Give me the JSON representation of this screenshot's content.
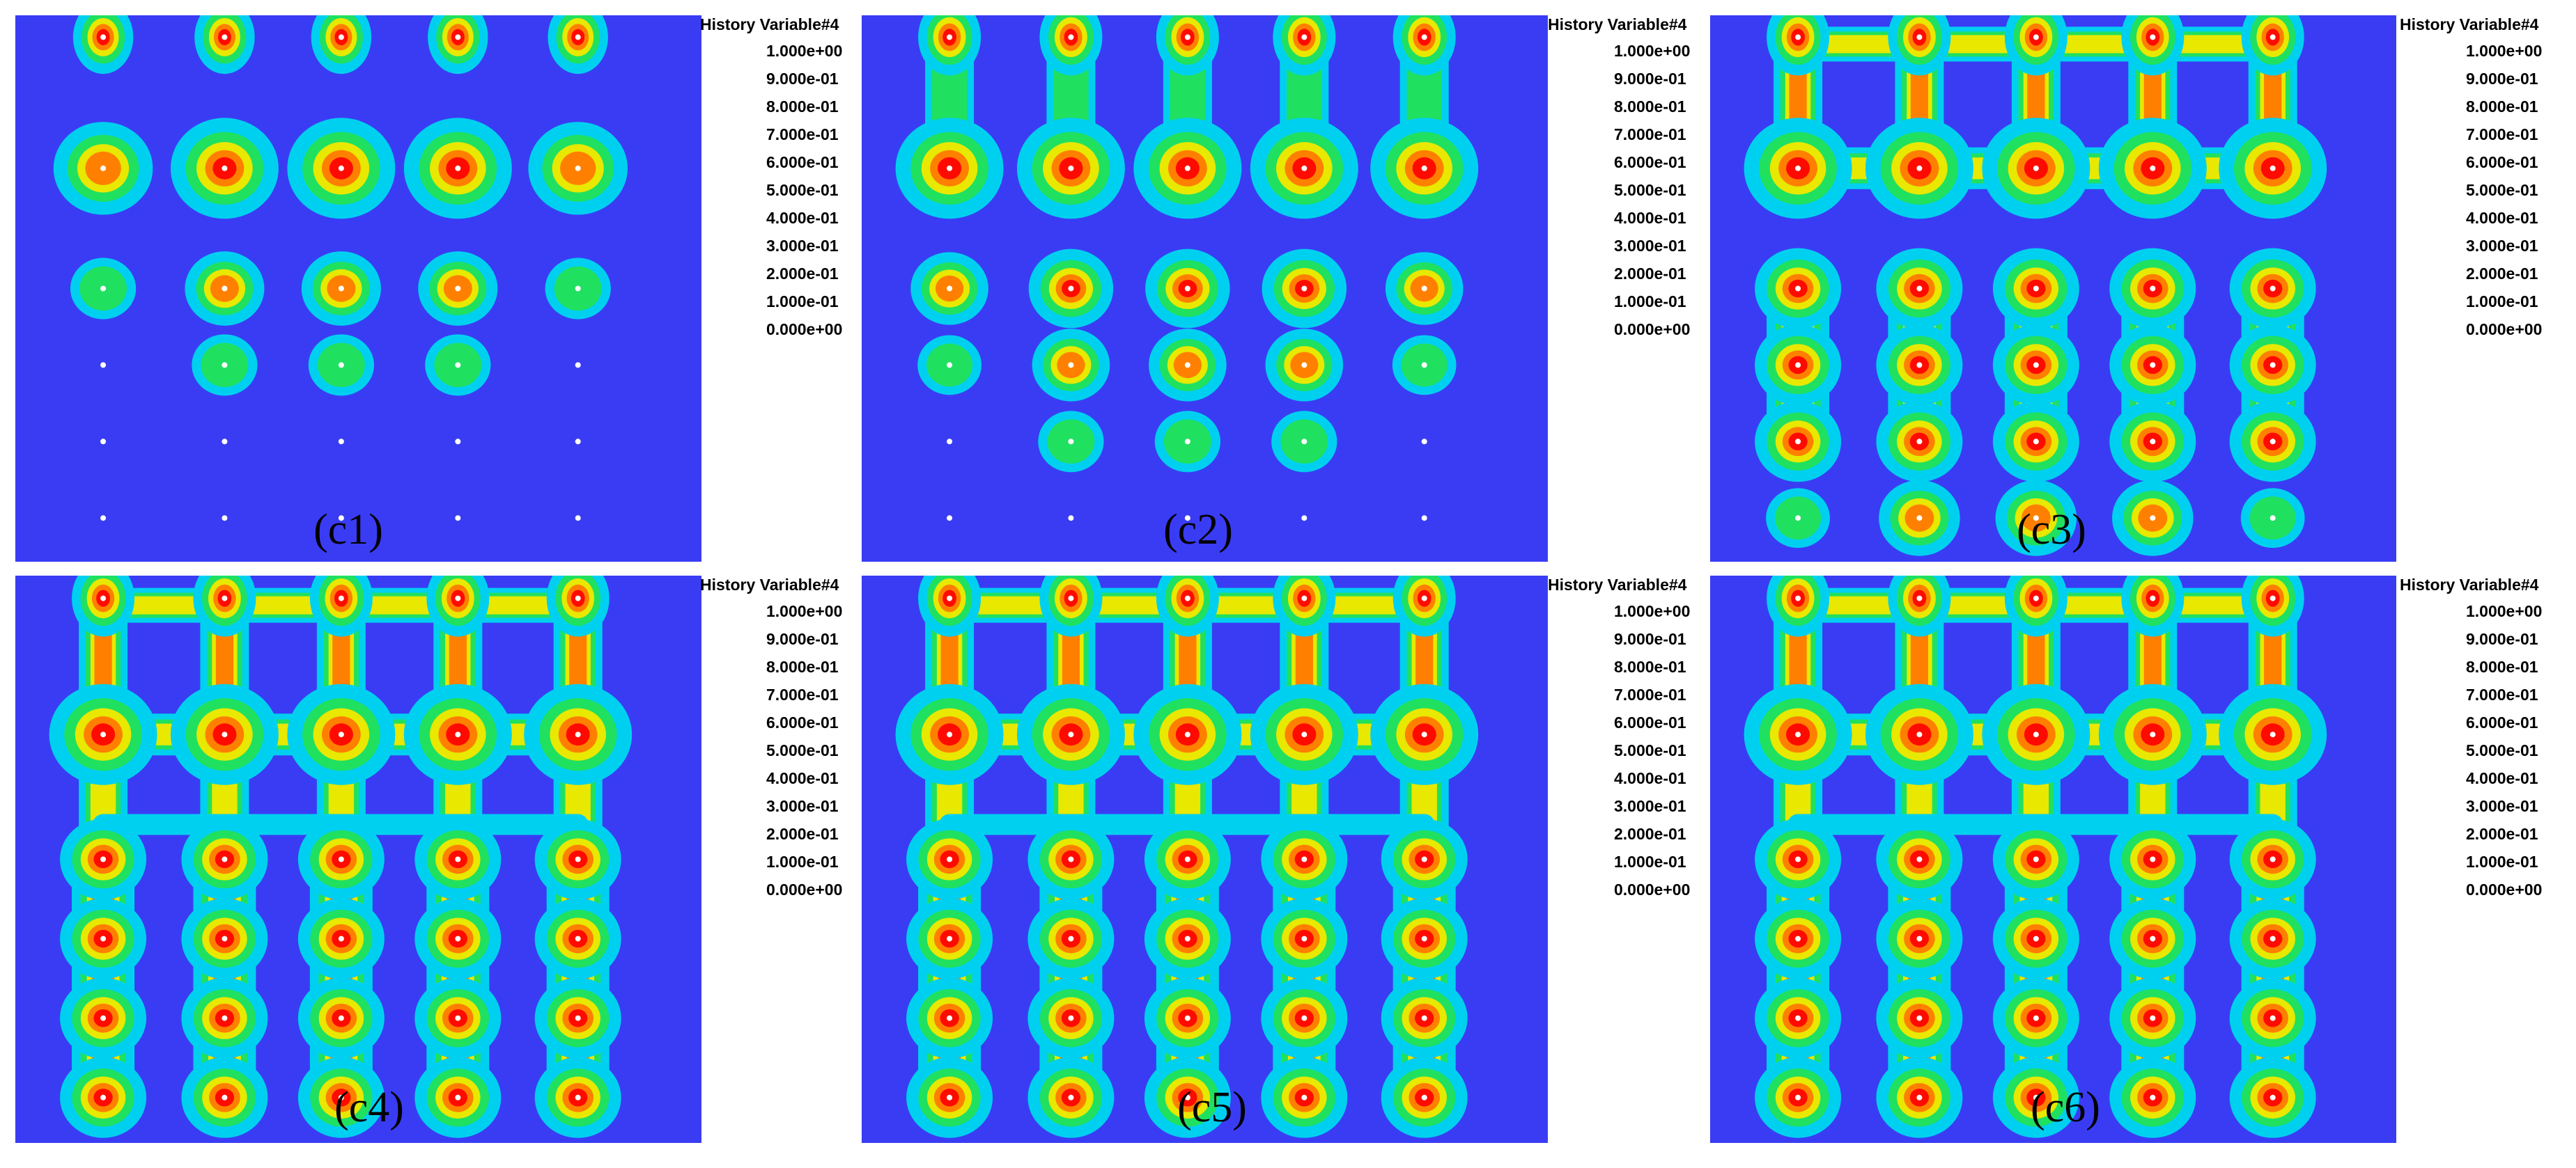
{
  "panels": [
    {
      "label": "(c1)",
      "stage": 1
    },
    {
      "label": "(c2)",
      "stage": 2
    },
    {
      "label": "(c3)",
      "stage": 3
    },
    {
      "label": "(c4)",
      "stage": 4
    },
    {
      "label": "(c5)",
      "stage": 5
    },
    {
      "label": "(c6)",
      "stage": 6
    }
  ],
  "legend": {
    "title": "History Variable#4",
    "labels": [
      "1.000e+00",
      "9.000e-01",
      "8.000e-01",
      "7.000e-01",
      "6.000e-01",
      "5.000e-01",
      "4.000e-01",
      "3.000e-01",
      "2.000e-01",
      "1.000e-01",
      "0.000e+00"
    ],
    "colors": [
      "#e80000",
      "#ff6000",
      "#ffa500",
      "#e8e800",
      "#8ee000",
      "#00d800",
      "#00e0a0",
      "#00d8e0",
      "#00a0e8",
      "#0050e8"
    ]
  },
  "colors": {
    "background": "#3a3cf4",
    "band_cyan": "#00d0f0",
    "band_green": "#20e060",
    "band_yellow": "#e8e800",
    "band_orange": "#ff8000",
    "band_red": "#ff0a00",
    "node": "#ffffff"
  }
}
